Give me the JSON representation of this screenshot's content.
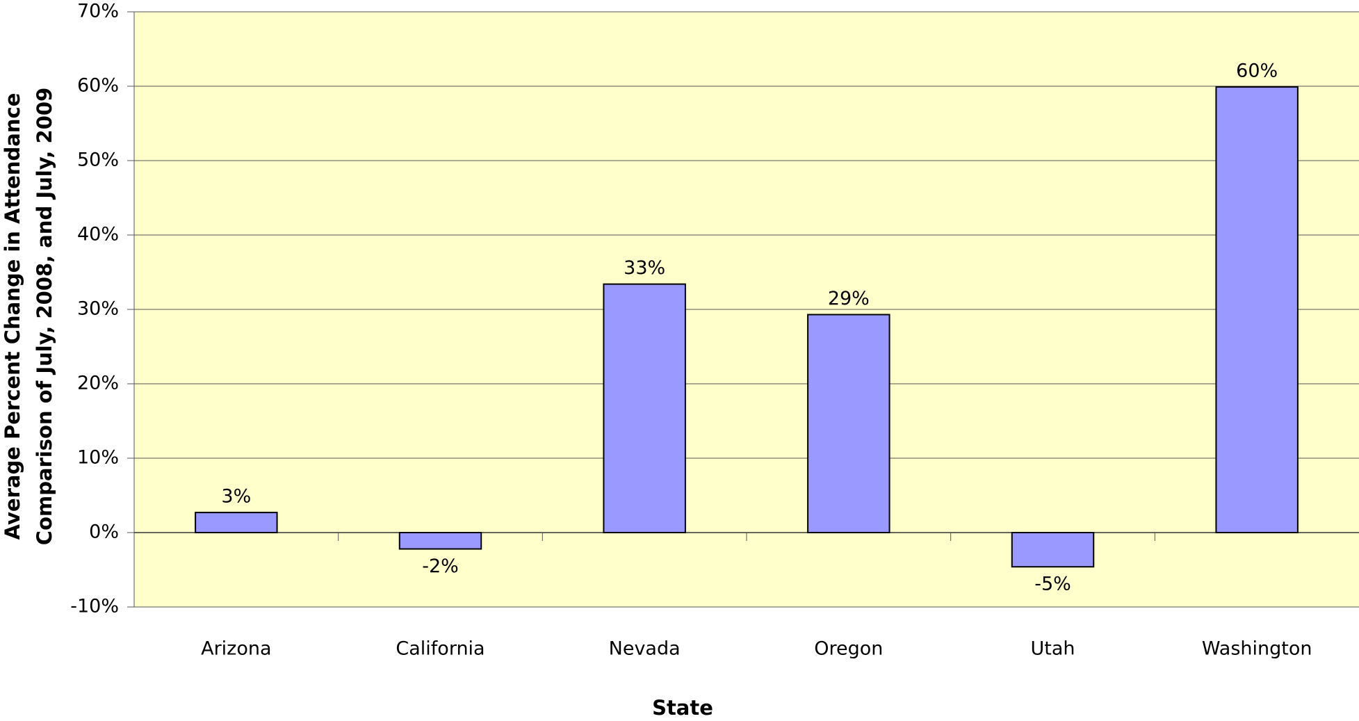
{
  "chart_data": {
    "type": "bar",
    "xlabel": "State",
    "ylabel": [
      "Average Percent Change in Attendance",
      "Comparison of July, 2008, and July, 2009"
    ],
    "categories": [
      "Arizona",
      "California",
      "Nevada",
      "Oregon",
      "Utah",
      "Washington"
    ],
    "values": [
      2.7,
      -2.2,
      33.4,
      29.3,
      -4.6,
      59.9
    ],
    "value_labels": [
      "3%",
      "-2%",
      "33%",
      "29%",
      "-5%",
      "60%"
    ],
    "color": "#9999ff",
    "ylim": [
      -10,
      70
    ],
    "yticks": [
      {
        "value": -10,
        "label": "-10%"
      },
      {
        "value": 0,
        "label": "0%"
      },
      {
        "value": 10,
        "label": "10%"
      },
      {
        "value": 20,
        "label": "20%"
      },
      {
        "value": 30,
        "label": "30%"
      },
      {
        "value": 40,
        "label": "40%"
      },
      {
        "value": 50,
        "label": "50%"
      },
      {
        "value": 60,
        "label": "60%"
      },
      {
        "value": 70,
        "label": "70%"
      }
    ],
    "grid": true
  }
}
